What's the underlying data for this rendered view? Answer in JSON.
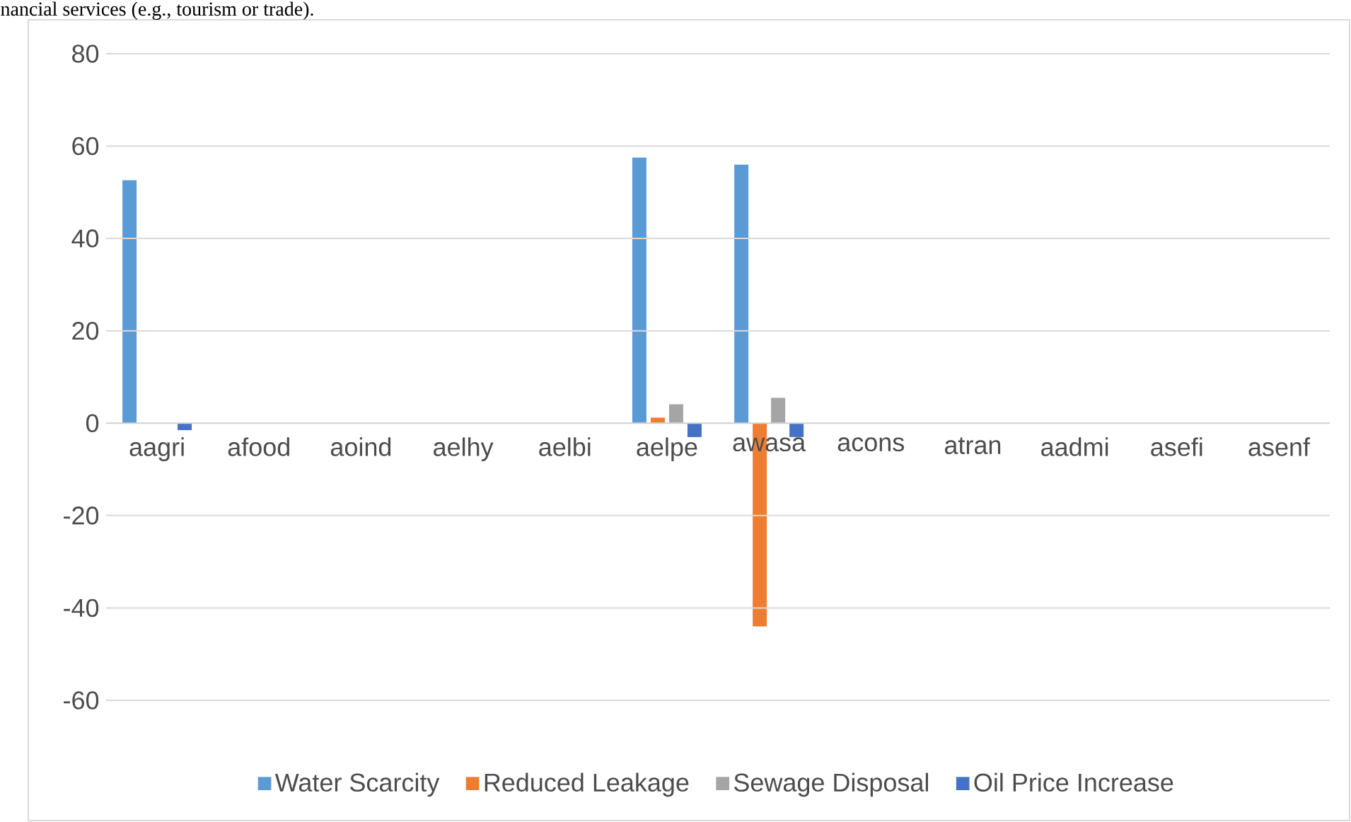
{
  "chart_data": {
    "type": "bar",
    "annotations": [
      "nancial services (e.g., tourism or trade)."
    ],
    "categories": [
      "aagri",
      "afood",
      "aoind",
      "aelhy",
      "aelbi",
      "aelpe",
      "awasa",
      "acons",
      "atran",
      "aadmi",
      "asefi",
      "asenf"
    ],
    "series": [
      {
        "name": "Water Scarcity",
        "color": "#5b9bd5",
        "values": [
          52.6,
          0,
          0,
          0,
          0,
          57.5,
          56,
          0,
          0,
          0,
          0,
          0
        ]
      },
      {
        "name": "Reduced Leakage",
        "color": "#ed7d31",
        "values": [
          0,
          0,
          0,
          0,
          0,
          1.2,
          -44,
          0,
          0,
          0,
          0,
          0
        ]
      },
      {
        "name": "Sewage Disposal",
        "color": "#a5a5a5",
        "values": [
          0,
          0,
          0,
          0,
          0,
          4.1,
          5.5,
          0,
          0,
          0,
          0,
          0
        ]
      },
      {
        "name": "Oil Price Increase",
        "color": "#4472c4",
        "values": [
          -1.5,
          0,
          0,
          0,
          0,
          -3,
          -3,
          0,
          0,
          0,
          0,
          0
        ]
      }
    ],
    "ylim": [
      -60,
      80
    ],
    "yticks": [
      -60,
      -40,
      -20,
      0,
      20,
      40,
      60,
      80
    ],
    "grid": "y",
    "legend": "bottom"
  }
}
